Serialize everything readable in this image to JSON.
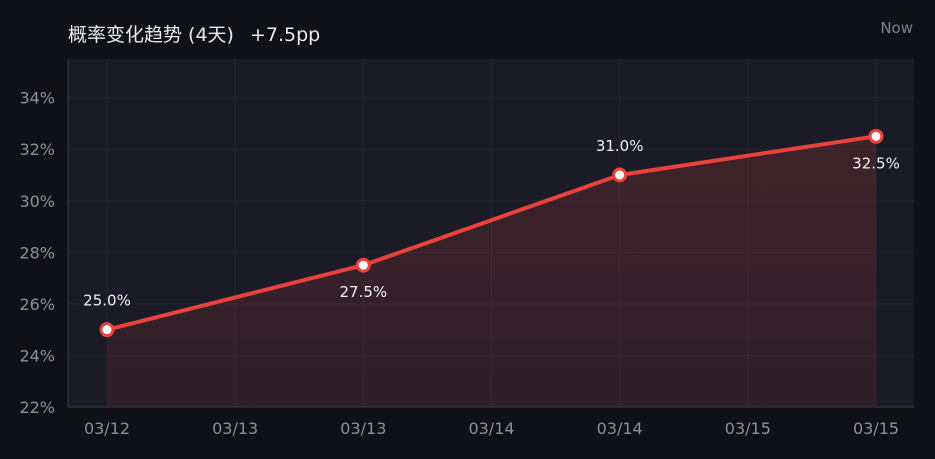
{
  "header": {
    "title": "概率变化趋势 (4天)",
    "delta": "+7.5pp",
    "now": "Now"
  },
  "colors": {
    "background": "#101116",
    "plot_background": "#1a1b26",
    "line": "#e8423a",
    "area": "#e8423a",
    "grid": "#23252f",
    "tick_text": "#8c8f9f",
    "label_text": "#f2f2f4"
  },
  "chart_data": {
    "type": "line",
    "title": "概率变化趋势 (4天)",
    "annotation": "+7.5pp",
    "x": [
      "03/12",
      "03/13",
      "03/14",
      "03/15"
    ],
    "x_tick_labels": [
      "03/12",
      "03/13",
      "03/13",
      "03/14",
      "03/14",
      "03/15",
      "03/15"
    ],
    "series": [
      {
        "values": [
          25.0,
          27.5,
          31.0,
          32.5
        ],
        "labels": [
          "25.0%",
          "27.5%",
          "31.0%",
          "32.5%"
        ],
        "label_position": [
          "above",
          "below",
          "above",
          "below"
        ]
      }
    ],
    "ylim": [
      22,
      35.5
    ],
    "y_ticks": [
      22,
      24,
      26,
      28,
      30,
      32,
      34
    ],
    "y_tick_labels": [
      "22%",
      "24%",
      "26%",
      "28%",
      "30%",
      "32%",
      "34%"
    ],
    "grid": true,
    "area_fill": true,
    "legend": "none"
  }
}
